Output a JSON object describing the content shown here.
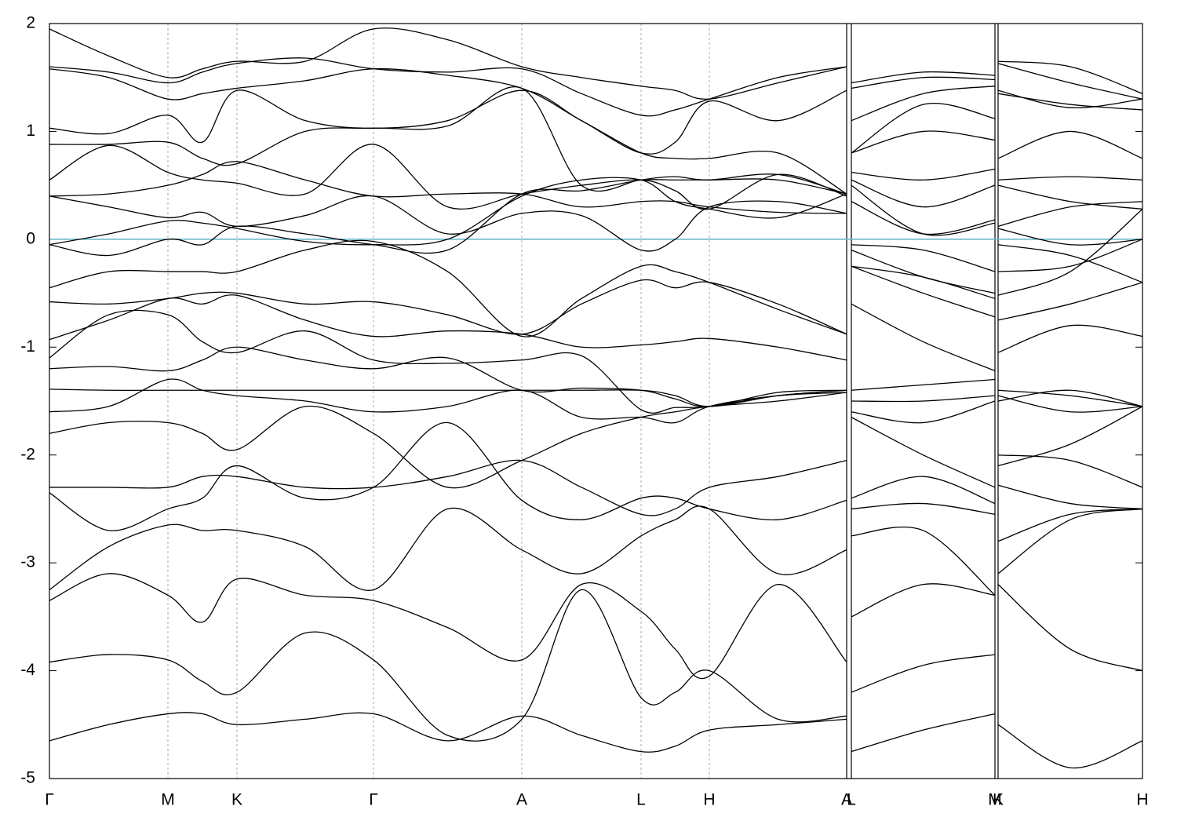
{
  "chart_data": {
    "type": "line",
    "x": [
      0,
      0.755,
      1.51,
      1.95,
      2.39,
      3.26,
      4.13,
      5.075,
      6.02,
      6.78,
      7.54,
      7.975,
      8.41,
      9.285,
      10.16,
      10.19,
      10.22,
      11.135,
      12.05,
      12.07,
      12.09,
      13.01,
      13.93
    ],
    "xlim": [
      0,
      13.93
    ],
    "xticks": [
      {
        "value": 0,
        "label": "Γ"
      },
      {
        "value": 1.51,
        "label": "M"
      },
      {
        "value": 2.39,
        "label": "K"
      },
      {
        "value": 4.13,
        "label": "Γ"
      },
      {
        "value": 6.02,
        "label": "A"
      },
      {
        "value": 7.54,
        "label": "L"
      },
      {
        "value": 8.41,
        "label": "H"
      },
      {
        "value": 10.16,
        "label": "A"
      },
      {
        "value": 10.22,
        "label": "L"
      },
      {
        "value": 12.05,
        "label": "M"
      },
      {
        "value": 12.09,
        "label": "K"
      },
      {
        "value": 13.93,
        "label": "H"
      }
    ],
    "ylim": [
      -5,
      2
    ],
    "yticks": [
      -5,
      -4,
      -3,
      -2,
      -1,
      0,
      1,
      2
    ],
    "grid": true,
    "color": "#000000",
    "fermi_level": 0,
    "fermi_color": "#6bb7c9",
    "series": [
      {
        "values": [
          1.95,
          1.7,
          1.5,
          1.58,
          1.65,
          1.65,
          1.95,
          1.85,
          1.6,
          1.5,
          1.42,
          1.38,
          1.3,
          1.45,
          1.6,
          null,
          1.45,
          1.55,
          1.52,
          null,
          1.65,
          1.6,
          1.35
        ]
      },
      {
        "values": [
          1.6,
          1.55,
          1.45,
          1.55,
          1.63,
          1.68,
          1.58,
          1.55,
          1.58,
          1.35,
          1.15,
          1.2,
          1.3,
          1.5,
          1.6,
          null,
          1.4,
          1.5,
          1.48,
          null,
          1.63,
          1.45,
          1.3
        ]
      },
      {
        "values": [
          1.58,
          1.5,
          1.3,
          1.35,
          1.4,
          1.47,
          1.58,
          1.52,
          1.4,
          1.1,
          0.8,
          0.9,
          1.28,
          1.1,
          1.38,
          null,
          1.1,
          1.35,
          1.42,
          null,
          1.38,
          1.22,
          1.3
        ]
      },
      {
        "values": [
          1.03,
          0.98,
          1.15,
          0.9,
          1.38,
          1.1,
          1.03,
          1.1,
          1.38,
          1.1,
          0.8,
          0.75,
          0.75,
          0.8,
          0.42,
          null,
          0.8,
          1.25,
          1.12,
          null,
          1.35,
          1.25,
          1.2
        ]
      },
      {
        "values": [
          0.88,
          0.88,
          0.9,
          0.75,
          0.7,
          1.0,
          1.03,
          1.05,
          1.4,
          0.5,
          0.55,
          0.55,
          0.55,
          0.55,
          0.42,
          null,
          0.8,
          1.0,
          0.92,
          null,
          0.75,
          1.0,
          0.75
        ]
      },
      {
        "values": [
          0.55,
          0.87,
          0.62,
          0.55,
          0.52,
          0.42,
          0.88,
          0.3,
          0.42,
          0.5,
          0.55,
          0.45,
          0.28,
          0.6,
          0.4,
          null,
          0.62,
          0.55,
          0.65,
          null,
          0.55,
          0.58,
          0.55
        ]
      },
      {
        "values": [
          0.4,
          0.42,
          0.5,
          0.6,
          0.72,
          0.55,
          0.4,
          0.42,
          0.42,
          0.3,
          0.35,
          0.35,
          0.3,
          0.25,
          0.24,
          null,
          0.55,
          0.3,
          0.5,
          null,
          0.5,
          0.35,
          0.28
        ]
      },
      {
        "values": [
          0.4,
          0.3,
          0.2,
          0.25,
          0.12,
          0.22,
          0.4,
          0.05,
          0.24,
          0.22,
          -0.1,
          0,
          0.3,
          0.35,
          0.24,
          null,
          0.5,
          0.05,
          0.15,
          null,
          0.12,
          0.3,
          0.35
        ]
      },
      {
        "values": [
          -0.05,
          0.05,
          0.17,
          0.15,
          0.1,
          -0.02,
          -0.05,
          0.0,
          0.4,
          0.55,
          0.55,
          0.35,
          0.28,
          0.2,
          0.42,
          null,
          0.35,
          0.05,
          0.18,
          null,
          0.1,
          -0.05,
          0.0
        ]
      },
      {
        "values": [
          -0.05,
          -0.15,
          0,
          -0.05,
          0.12,
          0.05,
          -0.05,
          -0.1,
          0.42,
          0.45,
          0.55,
          0.58,
          0.55,
          0.6,
          0.42,
          null,
          -0.05,
          -0.1,
          -0.3,
          null,
          -0.05,
          -0.15,
          -0.4
        ]
      },
      {
        "values": [
          -0.45,
          -0.3,
          -0.3,
          -0.3,
          -0.3,
          -0.1,
          -0.02,
          -0.3,
          -0.9,
          -0.55,
          -0.25,
          -0.3,
          -0.4,
          -0.65,
          -0.88,
          null,
          -0.25,
          -0.35,
          -0.55,
          null,
          -0.3,
          -0.25,
          0.0
        ]
      },
      {
        "values": [
          -0.58,
          -0.6,
          -0.55,
          -0.5,
          -0.5,
          -0.6,
          -0.58,
          -0.7,
          -0.88,
          -0.6,
          -0.38,
          -0.45,
          -0.4,
          -0.6,
          -0.88,
          null,
          -0.1,
          -0.35,
          -0.5,
          null,
          -0.52,
          -0.3,
          0.28
        ]
      },
      {
        "values": [
          -0.93,
          -0.75,
          -0.55,
          -0.6,
          -0.52,
          -0.75,
          -0.9,
          -0.85,
          -0.88,
          -1.0,
          -0.98,
          -0.95,
          -0.92,
          -1.0,
          -1.12,
          null,
          -0.6,
          -0.95,
          -1.22,
          null,
          -0.75,
          -0.6,
          -0.4
        ]
      },
      {
        "values": [
          -1.1,
          -0.7,
          -0.7,
          -0.95,
          -1.05,
          -0.85,
          -1.12,
          -1.15,
          -1.12,
          -1.08,
          -1.58,
          -1.56,
          -1.55,
          -1.45,
          -1.4,
          null,
          -0.25,
          -0.5,
          -0.72,
          null,
          -1.05,
          -0.8,
          -0.9
        ]
      },
      {
        "values": [
          -1.2,
          -1.18,
          -1.22,
          -1.12,
          -1.0,
          -1.12,
          -1.2,
          -1.1,
          -1.4,
          -1.38,
          -1.4,
          -1.48,
          -1.55,
          -1.42,
          -1.4,
          null,
          -1.4,
          -1.35,
          -1.3,
          null,
          -1.4,
          -1.45,
          -1.55
        ]
      },
      {
        "values": [
          -1.39,
          -1.4,
          -1.4,
          -1.4,
          -1.4,
          -1.4,
          -1.4,
          -1.4,
          -1.4,
          -1.4,
          -1.4,
          -1.45,
          -1.55,
          -1.45,
          -1.4,
          null,
          -1.5,
          -1.5,
          -1.45,
          null,
          -1.45,
          -1.6,
          -1.55
        ]
      },
      {
        "values": [
          -1.6,
          -1.55,
          -1.3,
          -1.4,
          -1.45,
          -1.5,
          -1.6,
          -1.55,
          -1.4,
          -1.65,
          -1.65,
          -1.7,
          -1.55,
          -1.45,
          -1.42,
          null,
          -1.6,
          -1.7,
          -1.5,
          null,
          -1.5,
          -1.4,
          -1.55
        ]
      },
      {
        "values": [
          -1.8,
          -1.7,
          -1.7,
          -1.8,
          -1.95,
          -1.55,
          -1.8,
          -2.3,
          -2.05,
          -1.8,
          -1.65,
          -1.6,
          -1.55,
          -1.5,
          -1.42,
          null,
          -1.65,
          -2.0,
          -2.3,
          null,
          -2.0,
          -2.05,
          -2.3
        ]
      },
      {
        "values": [
          -2.3,
          -2.3,
          -2.3,
          -2.2,
          -2.2,
          -2.3,
          -2.3,
          -2.2,
          -2.05,
          -2.3,
          -2.55,
          -2.5,
          -2.3,
          -2.2,
          -2.05,
          null,
          -2.4,
          -2.2,
          -2.45,
          null,
          -2.1,
          -1.9,
          -1.55
        ]
      },
      {
        "values": [
          -2.35,
          -2.7,
          -2.5,
          -2.4,
          -2.1,
          -2.4,
          -2.3,
          -1.7,
          -2.42,
          -2.6,
          -2.4,
          -2.4,
          -2.5,
          -2.6,
          -2.42,
          null,
          -2.5,
          -2.45,
          -2.55,
          null,
          -2.28,
          -2.45,
          -2.5
        ]
      },
      {
        "values": [
          -3.25,
          -2.85,
          -2.65,
          -2.7,
          -2.7,
          -2.85,
          -3.25,
          -2.5,
          -2.88,
          -3.1,
          -2.75,
          -2.6,
          -2.5,
          -3.1,
          -2.88,
          null,
          -2.75,
          -2.7,
          -3.3,
          null,
          -2.8,
          -2.55,
          -2.5
        ]
      },
      {
        "values": [
          -3.35,
          -3.1,
          -3.3,
          -3.55,
          -3.15,
          -3.3,
          -3.35,
          -3.6,
          -3.9,
          -3.2,
          -3.45,
          -3.8,
          -4.05,
          -3.2,
          -3.92,
          null,
          -3.5,
          -3.2,
          -3.3,
          null,
          -3.1,
          -2.6,
          -2.5
        ]
      },
      {
        "values": [
          -3.92,
          -3.85,
          -3.9,
          -4.1,
          -4.2,
          -3.65,
          -3.9,
          -4.6,
          -4.45,
          -3.25,
          -4.25,
          -4.2,
          -4.0,
          -4.45,
          -4.42,
          null,
          -4.2,
          -3.95,
          -3.85,
          null,
          -3.2,
          -3.8,
          -4.0
        ]
      },
      {
        "values": [
          -4.65,
          -4.5,
          -4.4,
          -4.4,
          -4.5,
          -4.45,
          -4.4,
          -4.65,
          -4.42,
          -4.6,
          -4.75,
          -4.7,
          -4.55,
          -4.5,
          -4.45,
          null,
          -4.75,
          -4.55,
          -4.4,
          null,
          -4.5,
          -4.9,
          -4.65
        ]
      }
    ]
  }
}
